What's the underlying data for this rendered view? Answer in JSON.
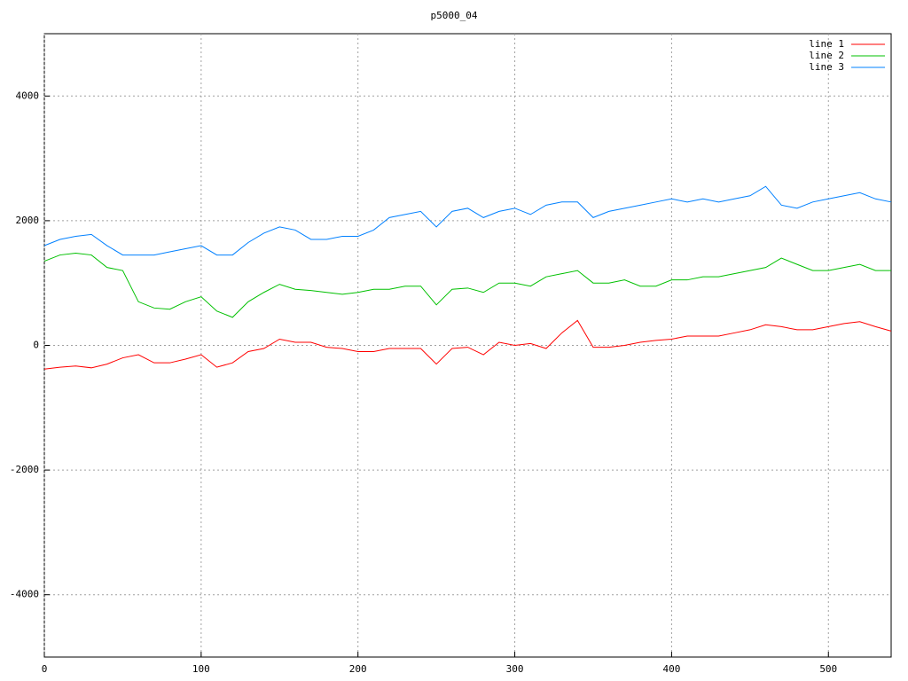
{
  "chart_data": {
    "type": "line",
    "title": "p5000_04",
    "x": [
      0,
      10,
      20,
      30,
      40,
      50,
      60,
      70,
      80,
      90,
      100,
      110,
      120,
      130,
      140,
      150,
      160,
      170,
      180,
      190,
      200,
      210,
      220,
      230,
      240,
      250,
      260,
      270,
      280,
      290,
      300,
      310,
      320,
      330,
      340,
      350,
      360,
      370,
      380,
      390,
      400,
      410,
      420,
      430,
      440,
      450,
      460,
      470,
      480,
      490,
      500,
      510,
      520,
      530,
      540
    ],
    "series": [
      {
        "name": "line 1",
        "color": "#ff0000",
        "values": [
          -380,
          -350,
          -330,
          -360,
          -300,
          -200,
          -150,
          -280,
          -280,
          -220,
          -150,
          -350,
          -280,
          -100,
          -50,
          100,
          50,
          50,
          -30,
          -50,
          -100,
          -100,
          -50,
          -50,
          -50,
          -300,
          -50,
          -30,
          -150,
          50,
          0,
          30,
          -50,
          200,
          400,
          -30,
          -30,
          0,
          50,
          80,
          100,
          150,
          150,
          150,
          200,
          250,
          330,
          300,
          250,
          250,
          300,
          350,
          380,
          300,
          230
        ]
      },
      {
        "name": "line 2",
        "color": "#00c000",
        "values": [
          1350,
          1450,
          1480,
          1450,
          1250,
          1200,
          700,
          600,
          580,
          700,
          780,
          550,
          450,
          700,
          850,
          980,
          900,
          880,
          850,
          820,
          850,
          900,
          900,
          950,
          950,
          650,
          900,
          920,
          850,
          1000,
          1000,
          950,
          1100,
          1150,
          1200,
          1000,
          1000,
          1050,
          950,
          950,
          1050,
          1050,
          1100,
          1100,
          1150,
          1200,
          1250,
          1400,
          1300,
          1200,
          1200,
          1250,
          1300,
          1200,
          1200
        ]
      },
      {
        "name": "line 3",
        "color": "#0080ff",
        "values": [
          1600,
          1700,
          1750,
          1780,
          1600,
          1450,
          1450,
          1450,
          1500,
          1550,
          1600,
          1450,
          1450,
          1650,
          1800,
          1900,
          1850,
          1700,
          1700,
          1750,
          1750,
          1850,
          2050,
          2100,
          2150,
          1900,
          2150,
          2200,
          2050,
          2150,
          2200,
          2100,
          2250,
          2300,
          2300,
          2050,
          2150,
          2200,
          2250,
          2300,
          2350,
          2300,
          2350,
          2300,
          2350,
          2400,
          2550,
          2250,
          2200,
          2300,
          2350,
          2400,
          2450,
          2350,
          2300
        ]
      }
    ],
    "xlim": [
      0,
      540
    ],
    "xticks": [
      0,
      100,
      200,
      300,
      400,
      500
    ],
    "ylim": [
      -5000,
      5000
    ],
    "yticks": [
      -4000,
      -2000,
      0,
      2000,
      4000
    ],
    "grid": true,
    "legend": "upper right"
  }
}
